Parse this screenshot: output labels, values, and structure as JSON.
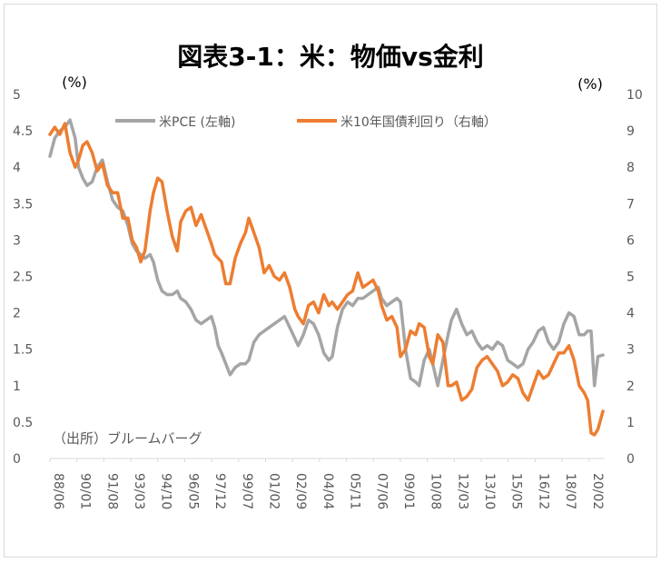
{
  "chart_data": {
    "type": "line",
    "title": "図表3-1：米：物価vs金利",
    "left_unit": "(%)",
    "right_unit": "(%)",
    "source_note": "（出所）ブルームバーグ",
    "y_left": {
      "min": 0,
      "max": 5,
      "ticks": [
        "0",
        "0.5",
        "1",
        "1.5",
        "2",
        "2.5",
        "3",
        "3.5",
        "4",
        "4.5",
        "5"
      ]
    },
    "y_right": {
      "min": 0,
      "max": 10,
      "ticks": [
        "0",
        "1",
        "2",
        "3",
        "4",
        "5",
        "6",
        "7",
        "8",
        "9",
        "10"
      ]
    },
    "x_ticks": [
      "88/06",
      "90/01",
      "91/08",
      "93/03",
      "94/10",
      "96/05",
      "97/12",
      "99/07",
      "01/02",
      "02/09",
      "04/04",
      "05/11",
      "07/06",
      "09/01",
      "10/08",
      "12/03",
      "13/10",
      "15/05",
      "16/12",
      "18/07",
      "20/02"
    ],
    "x_range": [
      1988.42,
      2021.0
    ],
    "legend": [
      "米PCE (左軸)",
      "米10年国債利回り（右軸）"
    ],
    "colors": {
      "pce": "#a5a5a5",
      "yield": "#ed7d31",
      "axis_text": "#595959"
    },
    "series": [
      {
        "name": "米PCE (左軸)",
        "axis": "left",
        "points": [
          [
            1988.42,
            4.15
          ],
          [
            1988.7,
            4.4
          ],
          [
            1989.0,
            4.5
          ],
          [
            1989.3,
            4.55
          ],
          [
            1989.6,
            4.65
          ],
          [
            1989.9,
            4.4
          ],
          [
            1990.1,
            4.0
          ],
          [
            1990.35,
            3.85
          ],
          [
            1990.6,
            3.75
          ],
          [
            1990.9,
            3.8
          ],
          [
            1991.2,
            4.0
          ],
          [
            1991.5,
            4.1
          ],
          [
            1991.8,
            3.8
          ],
          [
            1992.1,
            3.55
          ],
          [
            1992.4,
            3.45
          ],
          [
            1992.7,
            3.4
          ],
          [
            1993.0,
            3.2
          ],
          [
            1993.25,
            2.95
          ],
          [
            1993.5,
            2.85
          ],
          [
            1993.75,
            2.8
          ],
          [
            1994.0,
            2.75
          ],
          [
            1994.3,
            2.8
          ],
          [
            1994.5,
            2.7
          ],
          [
            1994.75,
            2.45
          ],
          [
            1995.0,
            2.3
          ],
          [
            1995.3,
            2.25
          ],
          [
            1995.6,
            2.25
          ],
          [
            1995.9,
            2.3
          ],
          [
            1996.1,
            2.2
          ],
          [
            1996.4,
            2.15
          ],
          [
            1996.7,
            2.05
          ],
          [
            1997.0,
            1.9
          ],
          [
            1997.3,
            1.85
          ],
          [
            1997.6,
            1.9
          ],
          [
            1997.9,
            1.95
          ],
          [
            1998.1,
            1.8
          ],
          [
            1998.3,
            1.55
          ],
          [
            1998.5,
            1.45
          ],
          [
            1998.75,
            1.3
          ],
          [
            1999.0,
            1.15
          ],
          [
            1999.3,
            1.25
          ],
          [
            1999.6,
            1.3
          ],
          [
            1999.9,
            1.3
          ],
          [
            2000.1,
            1.35
          ],
          [
            2000.4,
            1.6
          ],
          [
            2000.7,
            1.7
          ],
          [
            2001.0,
            1.75
          ],
          [
            2001.3,
            1.8
          ],
          [
            2001.6,
            1.85
          ],
          [
            2001.9,
            1.9
          ],
          [
            2002.2,
            1.95
          ],
          [
            2002.5,
            1.8
          ],
          [
            2002.8,
            1.65
          ],
          [
            2003.0,
            1.55
          ],
          [
            2003.3,
            1.7
          ],
          [
            2003.6,
            1.9
          ],
          [
            2003.9,
            1.85
          ],
          [
            2004.2,
            1.7
          ],
          [
            2004.5,
            1.45
          ],
          [
            2004.8,
            1.35
          ],
          [
            2005.0,
            1.4
          ],
          [
            2005.3,
            1.8
          ],
          [
            2005.6,
            2.05
          ],
          [
            2005.9,
            2.15
          ],
          [
            2006.2,
            2.1
          ],
          [
            2006.5,
            2.2
          ],
          [
            2006.8,
            2.2
          ],
          [
            2007.1,
            2.25
          ],
          [
            2007.4,
            2.3
          ],
          [
            2007.7,
            2.35
          ],
          [
            2007.9,
            2.2
          ],
          [
            2008.2,
            2.1
          ],
          [
            2008.5,
            2.15
          ],
          [
            2008.8,
            2.2
          ],
          [
            2009.0,
            2.15
          ],
          [
            2009.3,
            1.5
          ],
          [
            2009.6,
            1.1
          ],
          [
            2009.9,
            1.05
          ],
          [
            2010.1,
            1.0
          ],
          [
            2010.4,
            1.35
          ],
          [
            2010.7,
            1.5
          ],
          [
            2010.9,
            1.3
          ],
          [
            2011.2,
            1.0
          ],
          [
            2011.5,
            1.35
          ],
          [
            2011.8,
            1.7
          ],
          [
            2012.0,
            1.9
          ],
          [
            2012.3,
            2.05
          ],
          [
            2012.6,
            1.85
          ],
          [
            2012.9,
            1.7
          ],
          [
            2013.2,
            1.75
          ],
          [
            2013.5,
            1.6
          ],
          [
            2013.8,
            1.5
          ],
          [
            2014.1,
            1.55
          ],
          [
            2014.4,
            1.5
          ],
          [
            2014.7,
            1.6
          ],
          [
            2015.0,
            1.55
          ],
          [
            2015.3,
            1.35
          ],
          [
            2015.6,
            1.3
          ],
          [
            2015.9,
            1.25
          ],
          [
            2016.2,
            1.3
          ],
          [
            2016.5,
            1.5
          ],
          [
            2016.8,
            1.6
          ],
          [
            2017.1,
            1.75
          ],
          [
            2017.4,
            1.8
          ],
          [
            2017.7,
            1.6
          ],
          [
            2018.0,
            1.5
          ],
          [
            2018.3,
            1.6
          ],
          [
            2018.6,
            1.85
          ],
          [
            2018.9,
            2.0
          ],
          [
            2019.2,
            1.95
          ],
          [
            2019.5,
            1.7
          ],
          [
            2019.8,
            1.7
          ],
          [
            2020.0,
            1.75
          ],
          [
            2020.2,
            1.75
          ],
          [
            2020.4,
            1.0
          ],
          [
            2020.6,
            1.4
          ],
          [
            2020.9,
            1.42
          ]
        ]
      },
      {
        "name": "米10年国債利回り（右軸）",
        "axis": "right",
        "points": [
          [
            1988.42,
            8.9
          ],
          [
            1988.7,
            9.1
          ],
          [
            1989.0,
            8.9
          ],
          [
            1989.3,
            9.2
          ],
          [
            1989.6,
            8.4
          ],
          [
            1989.9,
            8.0
          ],
          [
            1990.1,
            8.2
          ],
          [
            1990.35,
            8.6
          ],
          [
            1990.6,
            8.7
          ],
          [
            1990.9,
            8.4
          ],
          [
            1991.2,
            7.9
          ],
          [
            1991.5,
            8.1
          ],
          [
            1991.8,
            7.5
          ],
          [
            1992.1,
            7.3
          ],
          [
            1992.4,
            7.3
          ],
          [
            1992.7,
            6.6
          ],
          [
            1993.0,
            6.6
          ],
          [
            1993.25,
            6.0
          ],
          [
            1993.5,
            5.8
          ],
          [
            1993.75,
            5.4
          ],
          [
            1994.0,
            5.7
          ],
          [
            1994.3,
            6.8
          ],
          [
            1994.5,
            7.3
          ],
          [
            1994.75,
            7.7
          ],
          [
            1995.0,
            7.6
          ],
          [
            1995.3,
            6.8
          ],
          [
            1995.6,
            6.1
          ],
          [
            1995.9,
            5.7
          ],
          [
            1996.1,
            6.5
          ],
          [
            1996.4,
            6.8
          ],
          [
            1996.7,
            6.9
          ],
          [
            1997.0,
            6.4
          ],
          [
            1997.3,
            6.7
          ],
          [
            1997.6,
            6.3
          ],
          [
            1997.9,
            5.9
          ],
          [
            1998.1,
            5.6
          ],
          [
            1998.3,
            5.5
          ],
          [
            1998.5,
            5.4
          ],
          [
            1998.75,
            4.8
          ],
          [
            1999.0,
            4.8
          ],
          [
            1999.3,
            5.5
          ],
          [
            1999.6,
            5.9
          ],
          [
            1999.9,
            6.2
          ],
          [
            2000.1,
            6.6
          ],
          [
            2000.4,
            6.2
          ],
          [
            2000.7,
            5.8
          ],
          [
            2001.0,
            5.1
          ],
          [
            2001.3,
            5.3
          ],
          [
            2001.6,
            5.0
          ],
          [
            2001.9,
            4.9
          ],
          [
            2002.2,
            5.1
          ],
          [
            2002.5,
            4.7
          ],
          [
            2002.8,
            4.1
          ],
          [
            2003.0,
            3.9
          ],
          [
            2003.3,
            3.7
          ],
          [
            2003.6,
            4.2
          ],
          [
            2003.9,
            4.3
          ],
          [
            2004.2,
            4.0
          ],
          [
            2004.5,
            4.5
          ],
          [
            2004.8,
            4.2
          ],
          [
            2005.0,
            4.3
          ],
          [
            2005.3,
            4.1
          ],
          [
            2005.6,
            4.3
          ],
          [
            2005.9,
            4.5
          ],
          [
            2006.2,
            4.6
          ],
          [
            2006.5,
            5.1
          ],
          [
            2006.8,
            4.7
          ],
          [
            2007.1,
            4.8
          ],
          [
            2007.4,
            4.9
          ],
          [
            2007.7,
            4.6
          ],
          [
            2007.9,
            4.2
          ],
          [
            2008.2,
            3.8
          ],
          [
            2008.5,
            3.9
          ],
          [
            2008.8,
            3.6
          ],
          [
            2009.0,
            2.8
          ],
          [
            2009.3,
            3.0
          ],
          [
            2009.6,
            3.5
          ],
          [
            2009.9,
            3.4
          ],
          [
            2010.1,
            3.7
          ],
          [
            2010.4,
            3.6
          ],
          [
            2010.7,
            2.8
          ],
          [
            2010.9,
            2.6
          ],
          [
            2011.2,
            3.4
          ],
          [
            2011.5,
            3.2
          ],
          [
            2011.8,
            2.0
          ],
          [
            2012.0,
            2.0
          ],
          [
            2012.3,
            2.1
          ],
          [
            2012.6,
            1.6
          ],
          [
            2012.9,
            1.7
          ],
          [
            2013.2,
            1.9
          ],
          [
            2013.5,
            2.5
          ],
          [
            2013.8,
            2.7
          ],
          [
            2014.1,
            2.8
          ],
          [
            2014.4,
            2.6
          ],
          [
            2014.7,
            2.4
          ],
          [
            2015.0,
            2.0
          ],
          [
            2015.3,
            2.1
          ],
          [
            2015.6,
            2.3
          ],
          [
            2015.9,
            2.2
          ],
          [
            2016.2,
            1.8
          ],
          [
            2016.5,
            1.6
          ],
          [
            2016.8,
            2.0
          ],
          [
            2017.1,
            2.4
          ],
          [
            2017.4,
            2.2
          ],
          [
            2017.7,
            2.3
          ],
          [
            2018.0,
            2.6
          ],
          [
            2018.3,
            2.9
          ],
          [
            2018.6,
            2.9
          ],
          [
            2018.9,
            3.1
          ],
          [
            2019.2,
            2.7
          ],
          [
            2019.5,
            2.0
          ],
          [
            2019.8,
            1.8
          ],
          [
            2020.0,
            1.6
          ],
          [
            2020.2,
            0.7
          ],
          [
            2020.4,
            0.65
          ],
          [
            2020.6,
            0.8
          ],
          [
            2020.9,
            1.3
          ]
        ]
      }
    ]
  }
}
